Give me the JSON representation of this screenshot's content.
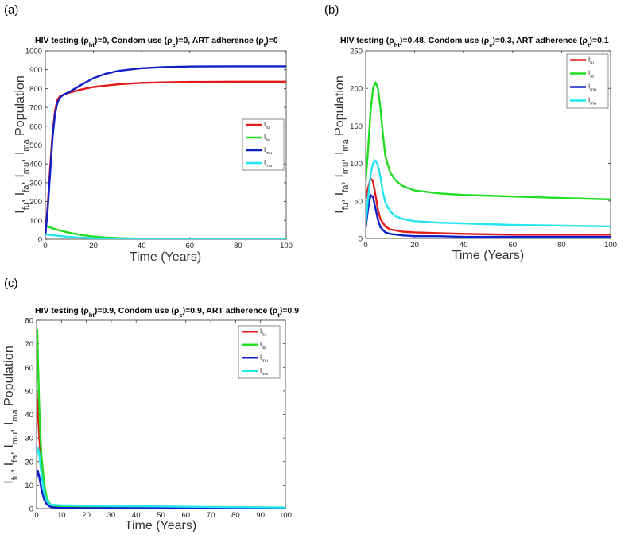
{
  "figure": {
    "panel_labels": [
      "(a)",
      "(b)",
      "(c)"
    ]
  },
  "chart_data": [
    {
      "type": "line",
      "title_parts": [
        "HIV testing (",
        "ρ",
        "ht",
        ")=0, Condom use (",
        "ρ",
        "c",
        ")=0, ART adherence (",
        "ρ",
        "t",
        ")=0"
      ],
      "xlabel": "Time (Years)",
      "ylabel": "Population",
      "ylabel_terms": [
        [
          "I",
          "fu"
        ],
        [
          "I",
          "fa"
        ],
        [
          "I",
          "mu"
        ],
        [
          "I",
          "ma"
        ]
      ],
      "xlim": [
        0,
        100
      ],
      "ylim": [
        0,
        1000
      ],
      "xticks": [
        0,
        20,
        40,
        60,
        80,
        100
      ],
      "yticks": [
        0,
        100,
        200,
        300,
        400,
        500,
        600,
        700,
        800,
        900,
        1000
      ],
      "legend_position": "right-middle",
      "series": [
        {
          "name": "I",
          "sub": "fu",
          "color": "#e31a1c",
          "x": [
            0,
            1,
            2,
            3,
            4,
            5,
            6,
            7,
            8,
            10,
            15,
            20,
            30,
            40,
            50,
            60,
            80,
            100
          ],
          "y": [
            20,
            180,
            380,
            560,
            680,
            740,
            758,
            765,
            770,
            778,
            795,
            808,
            822,
            830,
            833,
            835,
            836,
            836
          ]
        },
        {
          "name": "I",
          "sub": "fa",
          "color": "#22dd22",
          "x": [
            0,
            2,
            5,
            10,
            15,
            20,
            25,
            30,
            40,
            50,
            60,
            80,
            100
          ],
          "y": [
            72,
            62,
            50,
            34,
            22,
            14,
            9,
            6,
            3,
            2,
            1,
            1,
            1
          ]
        },
        {
          "name": "I",
          "sub": "mu",
          "color": "#1020c8",
          "x": [
            0,
            1,
            2,
            3,
            4,
            5,
            6,
            7,
            8,
            10,
            15,
            20,
            25,
            30,
            40,
            50,
            60,
            80,
            100
          ],
          "y": [
            20,
            160,
            350,
            540,
            660,
            725,
            750,
            762,
            770,
            782,
            820,
            855,
            878,
            893,
            908,
            914,
            917,
            918,
            918
          ]
        },
        {
          "name": "I",
          "sub": "ma",
          "color": "#22e5f0",
          "x": [
            0,
            2,
            5,
            10,
            15,
            20,
            30,
            40,
            50,
            60,
            80,
            100
          ],
          "y": [
            25,
            22,
            18,
            12,
            8,
            5,
            3,
            2,
            1,
            1,
            1,
            1
          ]
        }
      ]
    },
    {
      "type": "line",
      "title_parts": [
        "HIV testing (",
        "ρ",
        "ht",
        ")=0.48, Condom use (",
        "ρ",
        "c",
        ")=0.3, ART adherence (",
        "ρ",
        "t",
        ")=0.1"
      ],
      "xlabel": "Time (Years)",
      "ylabel": "Population",
      "ylabel_terms": [
        [
          "I",
          "fu"
        ],
        [
          "I",
          "fa"
        ],
        [
          "I",
          "mu"
        ],
        [
          "I",
          "ma"
        ]
      ],
      "xlim": [
        0,
        100
      ],
      "ylim": [
        0,
        250
      ],
      "xticks": [
        0,
        20,
        40,
        60,
        80,
        100
      ],
      "yticks": [
        0,
        50,
        100,
        150,
        200,
        250
      ],
      "legend_position": "top-right",
      "series": [
        {
          "name": "I",
          "sub": "fu",
          "color": "#e31a1c",
          "x": [
            0,
            1,
            2,
            3,
            4,
            5,
            6,
            8,
            10,
            15,
            20,
            30,
            40,
            60,
            80,
            100
          ],
          "y": [
            52,
            68,
            80,
            76,
            58,
            38,
            26,
            16,
            12,
            9,
            8,
            7,
            6,
            5,
            5,
            5
          ]
        },
        {
          "name": "I",
          "sub": "fa",
          "color": "#22dd22",
          "x": [
            0,
            1,
            2,
            3,
            4,
            5,
            6,
            7,
            8,
            10,
            12,
            15,
            20,
            30,
            40,
            60,
            80,
            100
          ],
          "y": [
            75,
            120,
            170,
            200,
            208,
            200,
            175,
            140,
            110,
            88,
            78,
            70,
            64,
            60,
            58,
            56,
            54,
            52
          ]
        },
        {
          "name": "I",
          "sub": "mu",
          "color": "#1020c8",
          "x": [
            0,
            1,
            2,
            3,
            4,
            5,
            6,
            8,
            10,
            15,
            20,
            30,
            40,
            60,
            80,
            100
          ],
          "y": [
            14,
            40,
            58,
            55,
            40,
            25,
            15,
            8,
            6,
            4,
            3,
            3,
            2,
            2,
            2,
            2
          ]
        },
        {
          "name": "I",
          "sub": "ma",
          "color": "#22e5f0",
          "x": [
            0,
            1,
            2,
            3,
            4,
            5,
            6,
            7,
            8,
            10,
            12,
            15,
            20,
            30,
            40,
            60,
            80,
            100
          ],
          "y": [
            20,
            55,
            85,
            100,
            104,
            98,
            82,
            62,
            48,
            36,
            30,
            26,
            23,
            21,
            20,
            18,
            17,
            16
          ]
        }
      ]
    },
    {
      "type": "line",
      "title_parts": [
        "HIV testing (",
        "ρ",
        "ht",
        ")=0.9, Condom use (",
        "ρ",
        "c",
        ")=0.9, ART adherence (",
        "ρ",
        "t",
        ")=0.9"
      ],
      "xlabel": "Time (Years)",
      "ylabel": "Population",
      "ylabel_terms": [
        [
          "I",
          "fu"
        ],
        [
          "I",
          "fa"
        ],
        [
          "I",
          "mu"
        ],
        [
          "I",
          "ma"
        ]
      ],
      "xlim": [
        0,
        100
      ],
      "ylim": [
        0,
        80
      ],
      "xticks": [
        0,
        10,
        20,
        30,
        40,
        50,
        60,
        70,
        80,
        90,
        100
      ],
      "yticks": [
        0,
        10,
        20,
        30,
        40,
        50,
        60,
        70,
        80
      ],
      "legend_position": "top-right",
      "series": [
        {
          "name": "I",
          "sub": "fu",
          "color": "#e31a1c",
          "x": [
            0,
            0.5,
            1,
            1.5,
            2,
            3,
            4,
            5,
            6,
            8,
            10,
            20,
            40,
            60,
            80,
            100
          ],
          "y": [
            50,
            42,
            32,
            24,
            16,
            8,
            4,
            2.2,
            1.5,
            1,
            0.8,
            0.5,
            0.4,
            0.3,
            0.3,
            0.3
          ]
        },
        {
          "name": "I",
          "sub": "fa",
          "color": "#22dd22",
          "x": [
            0,
            0.3,
            0.6,
            1,
            1.5,
            2,
            3,
            4,
            5,
            6,
            8,
            10,
            20,
            40,
            60,
            80,
            100
          ],
          "y": [
            54,
            76,
            62,
            46,
            32,
            22,
            11,
            5,
            2.5,
            1.5,
            1,
            0.8,
            0.6,
            0.5,
            0.4,
            0.3,
            0.3
          ]
        },
        {
          "name": "I",
          "sub": "mu",
          "color": "#1020c8",
          "x": [
            0,
            0.5,
            1,
            1.5,
            2,
            3,
            4,
            5,
            6,
            8,
            10,
            20,
            40,
            60,
            80,
            100
          ],
          "y": [
            13,
            16,
            14,
            11,
            8,
            4,
            2,
            1,
            0.6,
            0.4,
            0.3,
            0.2,
            0.2,
            0.1,
            0.1,
            0.1
          ]
        },
        {
          "name": "I",
          "sub": "ma",
          "color": "#22e5f0",
          "x": [
            0,
            0.5,
            1,
            1.5,
            2,
            3,
            4,
            5,
            6,
            8,
            10,
            20,
            40,
            60,
            80,
            100
          ],
          "y": [
            22,
            26,
            24,
            19,
            14,
            7,
            3.5,
            2,
            1.6,
            1.5,
            1.4,
            1.2,
            1,
            0.8,
            0.6,
            0.5
          ]
        }
      ]
    }
  ]
}
